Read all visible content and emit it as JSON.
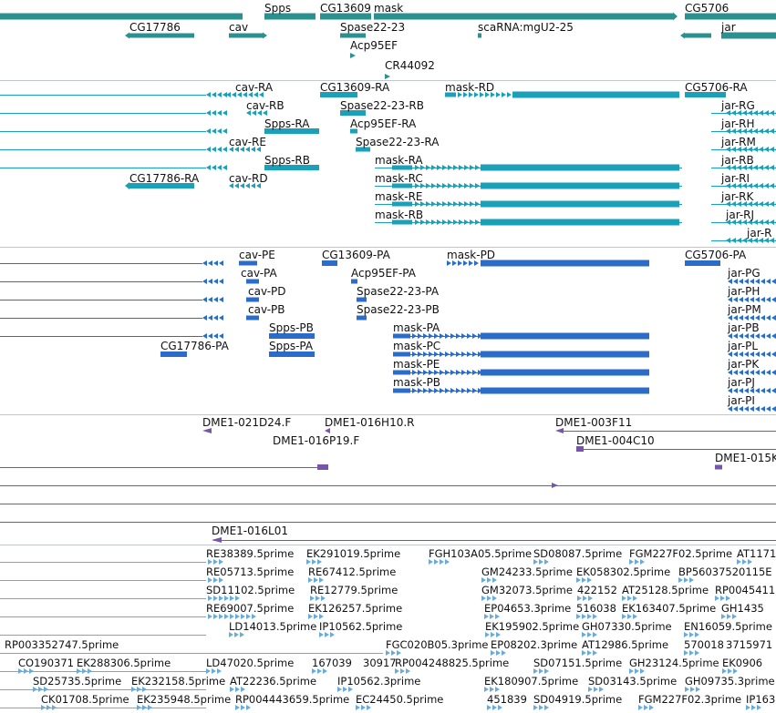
{
  "viewer": {
    "title": ""
  },
  "colors": {
    "gene": "#2a9090",
    "transcript": "#1aa0b8",
    "protein": "#2a6cc8",
    "clone": "#7755aa",
    "est": "#6aabd8",
    "separator": "#bfc7cf"
  },
  "tracks": {
    "genes": {
      "labels": [
        "Spps",
        "CG13609",
        "mask",
        "CG5706",
        "CG17786",
        "cav",
        "Spase22-23",
        "scaRNA:mgU2-25",
        "jar",
        "Acp95EF",
        "CR44092"
      ]
    },
    "transcripts": {
      "labels": [
        "cav-RA",
        "CG13609-RA",
        "mask-RD",
        "CG5706-RA",
        "cav-RB",
        "Spase22-23-RB",
        "jar-RG",
        "Spps-RA",
        "Acp95EF-RA",
        "jar-RH",
        "cav-RE",
        "Spase22-23-RA",
        "jar-RM",
        "Spps-RB",
        "mask-RA",
        "jar-RB",
        "CG17786-RA",
        "cav-RD",
        "mask-RC",
        "jar-RI",
        "mask-RE",
        "jar-RK",
        "mask-RB",
        "jar-RJ",
        "jar-R"
      ]
    },
    "proteins": {
      "labels": [
        "cav-PE",
        "CG13609-PA",
        "mask-PD",
        "CG5706-PA",
        "cav-PA",
        "Acp95EF-PA",
        "jar-PG",
        "cav-PD",
        "Spase22-23-PA",
        "jar-PH",
        "cav-PB",
        "Spase22-23-PB",
        "jar-PM",
        "Spps-PB",
        "mask-PA",
        "jar-PB",
        "CG17786-PA",
        "Spps-PA",
        "mask-PC",
        "jar-PL",
        "mask-PE",
        "jar-PK",
        "mask-PB",
        "jar-PJ",
        "jar-PI"
      ]
    },
    "clones": {
      "labels": [
        "DME1-021D24.F",
        "DME1-016H10.R",
        "DME1-003F11",
        "DME1-016P19.F",
        "DME1-004C10",
        "DME1-015K",
        "DME1-016L01"
      ]
    },
    "ests": {
      "labels": [
        "RE38389.5prime",
        "EK291019.5prime",
        "FGH103A05.5prime",
        "SD08087.5prime",
        "FGM227F02.5prime",
        "AT1171",
        "RE05713.5prime",
        "RE67412.5prime",
        "GM24233.5prime",
        "EK058302.5prime",
        "BP56037520115E",
        "SD11102.5prime",
        "RE12779.5prime",
        "GM32073.5prime",
        "422152",
        "AT25128.5prime",
        "RP0045411",
        "RE69007.5prime",
        "EK126257.5prime",
        "EP04653.3prime",
        "516038",
        "EK163407.5prime",
        "GH1435",
        "LD14013.5prime",
        "IP10562.5prime",
        "EK195902.5prime",
        "GH07330.5prime",
        "EN16059.5prime",
        "RP003352747.5prime",
        "FGC020B05.3prime",
        "EP08202.3prime",
        "AT12986.5prime",
        "570018",
        "3715971",
        "CO190371",
        "EK288306.5prime",
        "LD47020.5prime",
        "167039",
        "30917",
        "RP004248825.5prime",
        "SD07151.5prime",
        "GH23124.5prime",
        "EK0906",
        "SD25735.5prime",
        "EK232158.5prime",
        "AT22236.5prime",
        "IP10562.3prime",
        "EK180907.5prime",
        "SD03143.5prime",
        "GH09735.3prime",
        "CK01708.5prime",
        "EK235948.5prime",
        "RP004443659.5prime",
        "EC24450.5prime",
        "451839",
        "SD04919.5prime",
        "FGM227F02.3prime",
        "IP163"
      ]
    }
  }
}
